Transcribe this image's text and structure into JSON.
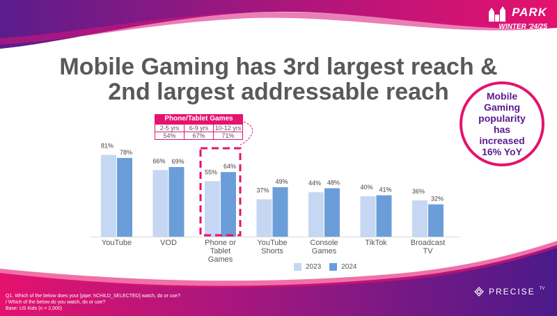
{
  "header": {
    "logo_name": "PARK",
    "logo_sub": "WINTER '24/25"
  },
  "title": {
    "line1": "Mobile Gaming has 3rd largest reach &",
    "line2": "2nd largest addressable reach"
  },
  "badge": {
    "text": "Mobile\nGaming\npopularity\nhas\nincreased\n16% YoY"
  },
  "inset": {
    "title": "Phone/Tablet Games",
    "columns": [
      "2-5 yrs",
      "6-9 yrs",
      "10-12 yrs"
    ],
    "values": [
      "54%",
      "67%",
      "71%"
    ]
  },
  "legend": {
    "y2023": "2023",
    "y2024": "2024"
  },
  "colors": {
    "bar_2023": "#c5d7f2",
    "bar_2024": "#6b9ed8",
    "accent_pink": "#e5126e",
    "accent_purple": "#5b1a8e"
  },
  "chart_data": {
    "type": "bar",
    "categories": [
      [
        "YouTube"
      ],
      [
        "VOD"
      ],
      [
        "Phone or",
        "Tablet",
        "Games"
      ],
      [
        "YouTube",
        "Shorts"
      ],
      [
        "Console",
        "Games"
      ],
      [
        "TikTok"
      ],
      [
        "Broadcast",
        "TV"
      ]
    ],
    "series": [
      {
        "name": "2023",
        "values": [
          81,
          66,
          55,
          37,
          44,
          40,
          36
        ]
      },
      {
        "name": "2024",
        "values": [
          78,
          69,
          64,
          49,
          48,
          41,
          32
        ]
      }
    ],
    "value_suffix": "%",
    "highlight_index": 2,
    "ylim": [
      0,
      100
    ],
    "grid": false,
    "legend_position": "bottom"
  },
  "footnote": {
    "text": "Q1. Which of the below does your [pipe: hCHILD_SELECTED] watch, do or use?\n/ Which of the below do you watch, do or use?\nBase: US Kids (n = 2,000)"
  },
  "brand": {
    "name": "PRECISE",
    "suffix": "TV"
  }
}
